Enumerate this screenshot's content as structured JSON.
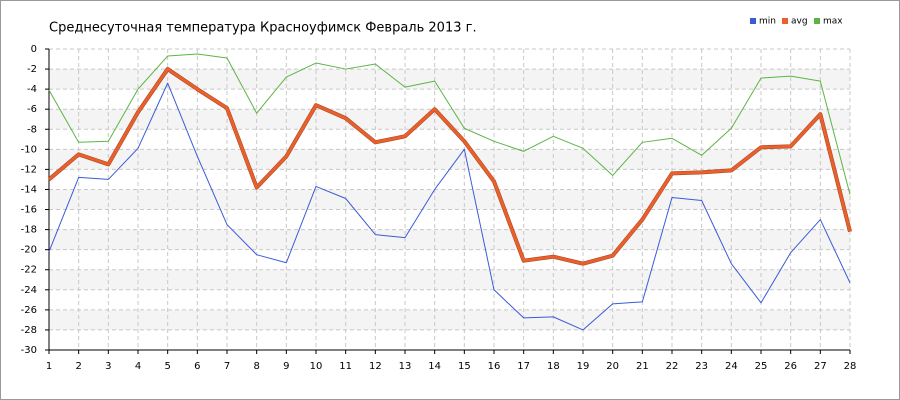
{
  "chart_data": {
    "type": "line",
    "title": "Среднесуточная температура Красноуфимск  Февраль 2013 г.",
    "x": [
      1,
      2,
      3,
      4,
      5,
      6,
      7,
      8,
      9,
      10,
      11,
      12,
      13,
      14,
      15,
      16,
      17,
      18,
      19,
      20,
      21,
      22,
      23,
      24,
      25,
      26,
      27,
      28
    ],
    "series": [
      {
        "name": "min",
        "color": "#3b5bd6",
        "width": 1,
        "values": [
          -20.2,
          -12.8,
          -13,
          -9.9,
          -3.4,
          -10.7,
          -17.5,
          -20.5,
          -21.3,
          -13.7,
          -14.9,
          -18.5,
          -18.8,
          -14,
          -10,
          -24,
          -26.8,
          -26.7,
          -28,
          -25.4,
          -25.2,
          -14.8,
          -15.1,
          -21.4,
          -25.3,
          -20.3,
          -17,
          -23.3
        ]
      },
      {
        "name": "avg",
        "color": "#e8602c",
        "width": 3,
        "values": [
          -13,
          -10.5,
          -11.5,
          -6.3,
          -2,
          -4,
          -5.9,
          -13.8,
          -10.7,
          -5.6,
          -6.9,
          -9.3,
          -8.7,
          -6,
          -9.2,
          -13.2,
          -21.1,
          -20.7,
          -21.4,
          -20.6,
          -17,
          -12.4,
          -12.3,
          -12.1,
          -9.8,
          -9.7,
          -6.5,
          -18.2
        ]
      },
      {
        "name": "max",
        "color": "#5cb543",
        "width": 1,
        "values": [
          -4.1,
          -9.3,
          -9.2,
          -4,
          -0.7,
          -0.5,
          -0.9,
          -6.4,
          -2.8,
          -1.4,
          -2,
          -1.5,
          -3.8,
          -3.2,
          -7.9,
          -9.2,
          -10.2,
          -8.7,
          -9.9,
          -12.6,
          -9.3,
          -8.9,
          -10.6,
          -7.9,
          -2.9,
          -2.7,
          -3.2,
          -14.5
        ]
      }
    ],
    "xlim": [
      1,
      28
    ],
    "xticks": [
      1,
      2,
      3,
      4,
      5,
      6,
      7,
      8,
      9,
      10,
      11,
      12,
      13,
      14,
      15,
      16,
      17,
      18,
      19,
      20,
      21,
      22,
      23,
      24,
      25,
      26,
      27,
      28
    ],
    "ylim": [
      -30,
      0
    ],
    "yticks": [
      0,
      -2,
      -4,
      -6,
      -8,
      -10,
      -12,
      -14,
      -16,
      -18,
      -20,
      -22,
      -24,
      -26,
      -28,
      -30
    ],
    "grid": true,
    "legend": "top-right"
  }
}
